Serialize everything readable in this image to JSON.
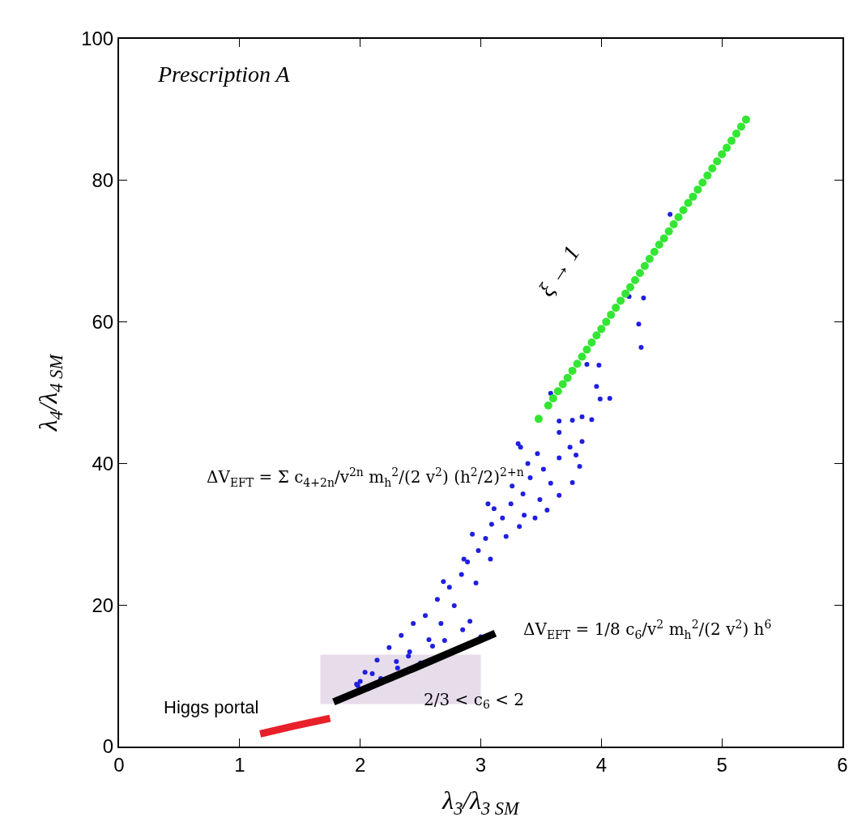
{
  "chart_data": {
    "type": "scatter",
    "xlabel": "λ$_{3}$/λ$_{3 SM}$",
    "ylabel": "λ$_{4}$/λ$_{4 SM}$",
    "xlim": [
      0,
      6
    ],
    "xticks": [
      0,
      1,
      2,
      3,
      4,
      5,
      6
    ],
    "ylim": [
      0,
      100
    ],
    "yticks": [
      0,
      20,
      40,
      60,
      80,
      100
    ],
    "grid": false,
    "series": [
      {
        "type": "line",
        "color": "#e6dcea",
        "marker": "none",
        "x": [
          1.67,
          3.0
        ],
        "values": [
          null,
          null
        ],
        "lower": [
          6,
          6
        ],
        "upper": [
          13,
          13
        ]
      },
      {
        "color": "#1f1fe0",
        "marker": "circle",
        "x": [
          4.57,
          4.23,
          4.35,
          4.31,
          4.33,
          3.88,
          3.98,
          3.96,
          3.99,
          4.07,
          3.84,
          3.92,
          3.58,
          3.65,
          3.76,
          3.65,
          3.84,
          3.74,
          3.65,
          3.79,
          3.82,
          3.76,
          3.33,
          3.39,
          3.47,
          3.41,
          3.52,
          3.58,
          3.49,
          3.65,
          3.26,
          3.35,
          3.25,
          3.36,
          3.11,
          3.18,
          3.09,
          3.04,
          3.21,
          3.32,
          3.45,
          3.55,
          2.98,
          2.89,
          3.08,
          2.84,
          2.74,
          2.96,
          2.64,
          2.78,
          2.54,
          2.67,
          2.44,
          2.57,
          2.34,
          2.24,
          2.41,
          2.14,
          2.31,
          2.04,
          2.17,
          1.97,
          2.07,
          2.2,
          2.5,
          3.0,
          2.91,
          2.85,
          2.7,
          2.6,
          2.4,
          2.3,
          2.1,
          1.98,
          2.0,
          2.69,
          2.86,
          2.93,
          3.06,
          3.31
        ],
        "values": [
          75.2,
          63.6,
          63.4,
          59.7,
          56.4,
          54.0,
          53.9,
          50.9,
          49.1,
          49.2,
          46.6,
          46.2,
          49.9,
          46.0,
          46.1,
          44.4,
          43.1,
          42.3,
          40.8,
          41.2,
          39.6,
          37.3,
          42.3,
          40.0,
          41.4,
          38.0,
          39.2,
          37.2,
          34.9,
          35.5,
          36.8,
          35.7,
          34.3,
          32.7,
          33.6,
          32.3,
          31.4,
          29.4,
          29.7,
          31.1,
          32.3,
          33.4,
          27.7,
          26.1,
          26.5,
          24.3,
          22.5,
          23.1,
          20.8,
          19.9,
          18.5,
          17.4,
          17.4,
          15.1,
          15.7,
          14.0,
          13.4,
          12.2,
          11.1,
          10.5,
          9.6,
          8.8,
          8.2,
          9.5,
          11.8,
          15.5,
          17.7,
          16.5,
          15.0,
          14.2,
          12.8,
          12.0,
          10.3,
          8.6,
          9.2,
          23.3,
          26.5,
          30.0,
          34.3,
          42.8
        ]
      },
      {
        "color": "#33e633",
        "marker": "circle",
        "x": [
          3.48,
          3.56,
          3.6,
          3.64,
          3.68,
          3.72,
          3.76,
          3.8,
          3.84,
          3.88,
          3.92,
          3.96,
          4.0,
          4.04,
          4.08,
          4.12,
          4.16,
          4.2,
          4.24,
          4.28,
          4.32,
          4.36,
          4.4,
          4.44,
          4.48,
          4.52,
          4.56,
          4.6,
          4.64,
          4.68,
          4.72,
          4.76,
          4.8,
          4.84,
          4.88,
          4.92,
          4.96,
          5.0,
          5.04,
          5.08,
          5.12,
          5.16,
          5.2
        ],
        "values": [
          46.3,
          48.2,
          49.2,
          50.2,
          51.2,
          52.1,
          53.1,
          54.1,
          55.1,
          56.1,
          57.1,
          58.1,
          59.0,
          60.0,
          61.0,
          62.0,
          63.0,
          64.0,
          64.9,
          65.9,
          66.9,
          67.9,
          68.9,
          69.9,
          70.9,
          71.8,
          72.8,
          73.8,
          74.8,
          75.8,
          76.8,
          77.7,
          78.7,
          79.7,
          80.7,
          81.7,
          82.7,
          83.7,
          84.6,
          85.6,
          86.6,
          87.6,
          88.6
        ]
      },
      {
        "type": "line",
        "color": "#e8202a",
        "marker": "none",
        "x": [
          1.17,
          1.45,
          1.75
        ],
        "values": [
          1.8,
          2.9,
          4.0
        ]
      },
      {
        "type": "line",
        "color": "#000000",
        "marker": "none",
        "x": [
          1.78,
          2.45,
          3.12
        ],
        "values": [
          6.3,
          11.1,
          16.0
        ]
      }
    ],
    "annotations": [
      "Prescription A",
      "Higgs portal",
      "ξ → 1",
      "ΔV$_{EFT}$ = Σ c$_{4+2n}$/v$^{2n}$ m$_{h}$$^{2}$/(2 v$^{2}$) (h$^{2}$/2)$^{2+n}$",
      "ΔV$_{EFT}$ = 1/8 c$_{6}$/v$^{2}$ m$_{h}$$^{2}$/(2 v$^{2}$) h$^{6}$",
      {
        "text": "2/3 < c$_{6}$ < 2",
        "x": 2.94,
        "y": 6.5
      }
    ]
  }
}
